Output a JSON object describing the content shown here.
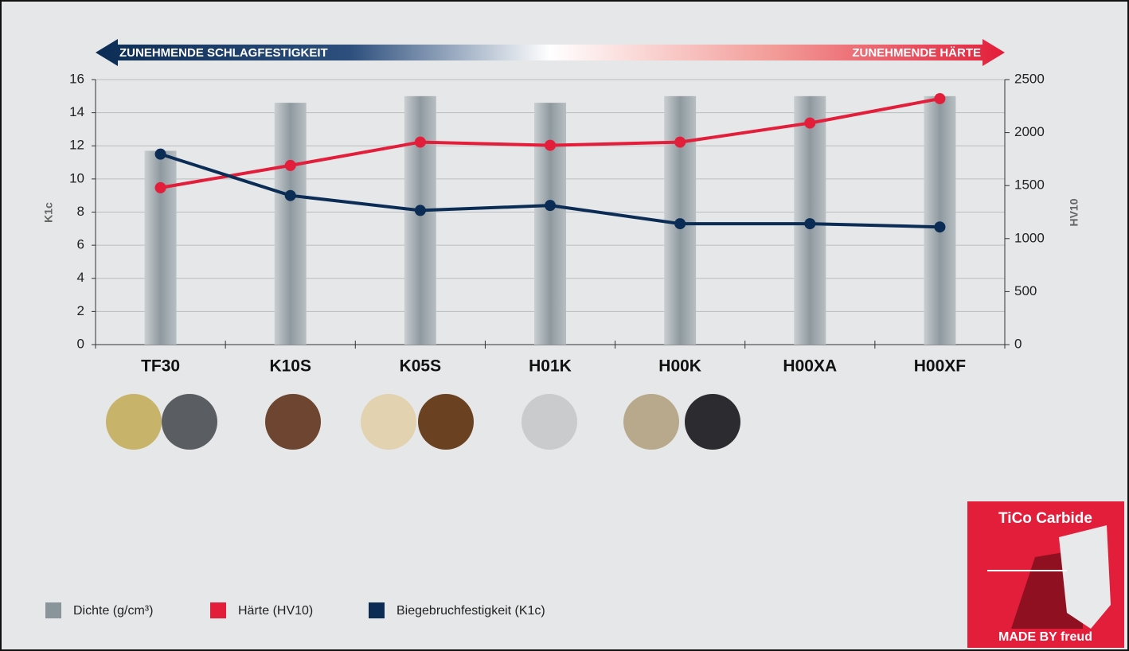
{
  "chart_data": {
    "type": "combo",
    "banner_left": "ZUNEHMENDE SCHLAGFESTIGKEIT",
    "banner_right": "ZUNEHMENDE HÄRTE",
    "ylabel": "K1c",
    "y2label": "HV10",
    "categories": [
      "TF30",
      "K10S",
      "K05S",
      "H01K",
      "H00K",
      "H00XA",
      "H00XF"
    ],
    "series": [
      {
        "name": "Dichte (g/cm³)",
        "type": "bar",
        "color": "#8a959b",
        "values": [
          11.7,
          14.6,
          15.0,
          14.6,
          15.0,
          15.0,
          15.0
        ]
      },
      {
        "name": "Härte (HV10)",
        "type": "line",
        "axis": "y2",
        "color": "#e31e3a",
        "values": [
          1480,
          1690,
          1910,
          1880,
          1910,
          2090,
          2320
        ]
      },
      {
        "name": "Biegebruchfestigkeit (K1c)",
        "type": "line",
        "color": "#0b2d55",
        "values": [
          11.5,
          9.0,
          8.1,
          8.4,
          7.3,
          7.3,
          7.1
        ]
      }
    ],
    "ylim": [
      0,
      16
    ],
    "yticks": [
      0,
      2,
      4,
      6,
      8,
      10,
      12,
      14,
      16
    ],
    "y2lim": [
      0,
      2500
    ],
    "y2ticks": [
      0,
      500,
      1000,
      1500,
      2000,
      2500
    ],
    "grid": true,
    "badge_top": "TiCo Carbide",
    "badge_bottom": "MADE BY freud"
  }
}
